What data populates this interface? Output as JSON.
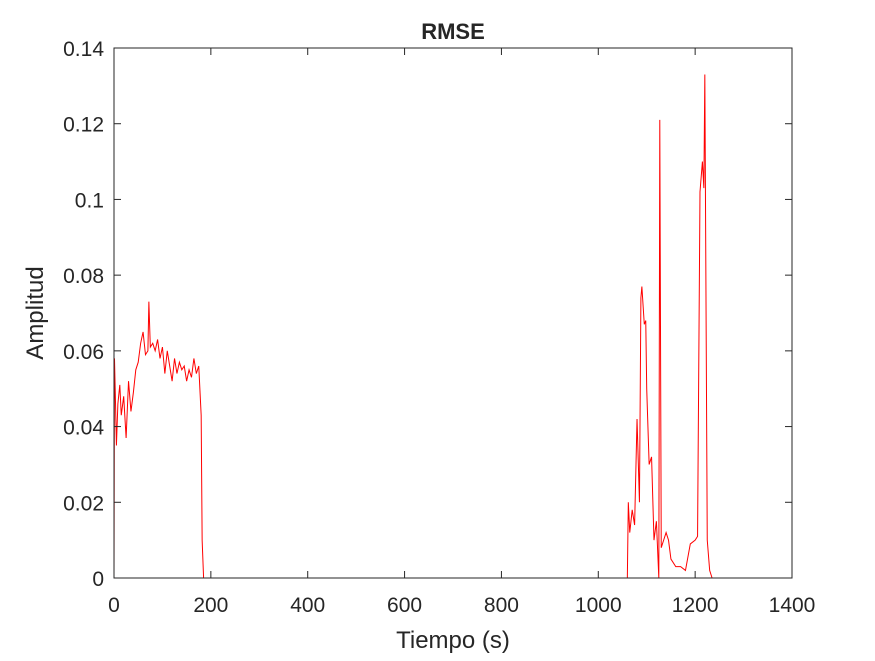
{
  "chart_data": {
    "type": "line",
    "title": "RMSE",
    "xlabel": "Tiempo (s)",
    "ylabel": "Amplitud",
    "xlim": [
      0,
      1400
    ],
    "ylim": [
      0,
      0.14
    ],
    "xticks": [
      0,
      200,
      400,
      600,
      800,
      1000,
      1200,
      1400
    ],
    "yticks": [
      0,
      0.02,
      0.04,
      0.06,
      0.08,
      0.1,
      0.12,
      0.14
    ],
    "xtick_labels": [
      "0",
      "200",
      "400",
      "600",
      "800",
      "1000",
      "1200",
      "1400"
    ],
    "ytick_labels": [
      "0",
      "0.02",
      "0.04",
      "0.06",
      "0.08",
      "0.1",
      "0.12",
      "0.14"
    ],
    "grid": false,
    "series": [
      {
        "color": "#ff0000",
        "x": [
          0,
          1,
          3,
          5,
          8,
          12,
          15,
          20,
          25,
          30,
          35,
          40,
          45,
          50,
          55,
          60,
          65,
          70,
          72,
          75,
          80,
          85,
          90,
          95,
          100,
          105,
          110,
          115,
          120,
          125,
          130,
          135,
          140,
          145,
          150,
          155,
          160,
          165,
          170,
          175,
          180,
          182,
          185,
          400,
          600,
          800,
          1000,
          1060,
          1062,
          1065,
          1070,
          1075,
          1080,
          1085,
          1088,
          1090,
          1095,
          1098,
          1100,
          1105,
          1110,
          1115,
          1120,
          1125,
          1127,
          1130,
          1135,
          1140,
          1145,
          1150,
          1160,
          1170,
          1180,
          1190,
          1200,
          1205,
          1210,
          1215,
          1218,
          1220,
          1225,
          1230,
          1235,
          1300,
          1400
        ],
        "y": [
          0.0,
          0.058,
          0.047,
          0.035,
          0.046,
          0.051,
          0.043,
          0.048,
          0.037,
          0.052,
          0.044,
          0.049,
          0.055,
          0.057,
          0.062,
          0.065,
          0.059,
          0.06,
          0.073,
          0.061,
          0.062,
          0.06,
          0.063,
          0.058,
          0.061,
          0.054,
          0.06,
          0.056,
          0.052,
          0.058,
          0.054,
          0.057,
          0.055,
          0.056,
          0.052,
          0.055,
          0.053,
          0.058,
          0.054,
          0.056,
          0.043,
          0.01,
          0.0,
          0.0,
          0.0,
          0.0,
          0.0,
          0.0,
          0.02,
          0.012,
          0.018,
          0.014,
          0.042,
          0.02,
          0.074,
          0.077,
          0.067,
          0.068,
          0.05,
          0.03,
          0.032,
          0.01,
          0.015,
          0.0,
          0.121,
          0.008,
          0.01,
          0.012,
          0.01,
          0.005,
          0.003,
          0.003,
          0.002,
          0.009,
          0.01,
          0.011,
          0.102,
          0.11,
          0.103,
          0.133,
          0.01,
          0.002,
          0.0,
          0.0,
          0.0
        ]
      }
    ]
  }
}
